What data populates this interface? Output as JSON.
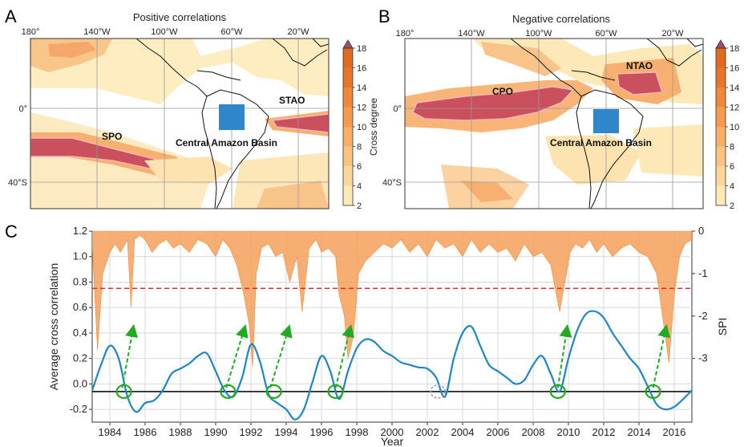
{
  "panels": {
    "a": {
      "letter": "A",
      "title": "Positive correlations",
      "lon_ticks": [
        "180°",
        "140°W",
        "100°W",
        "60°W",
        "20°W"
      ],
      "lat_ticks": [
        "0°",
        "40°S"
      ],
      "regions": {
        "spo": "SPO",
        "stao": "STAO",
        "basin": "Central Amazon Basin"
      }
    },
    "b": {
      "letter": "B",
      "title": "Negative correlations",
      "lon_ticks": [
        "180°",
        "140°W",
        "100°W",
        "60°W",
        "20°W"
      ],
      "lat_ticks": [
        "0°",
        "40°S"
      ],
      "regions": {
        "cpo": "CPO",
        "ntao": "NTAO",
        "basin": "Central Amazon Basin"
      }
    },
    "c": {
      "letter": "C"
    }
  },
  "colorbar": {
    "label": "Cross degree",
    "ticks": [
      "2",
      "4",
      "6",
      "8",
      "10",
      "12",
      "14",
      "16",
      "18"
    ],
    "colors": [
      "#fff7d6",
      "#fde9b4",
      "#fcd798",
      "#fbc37f",
      "#f8ae66",
      "#f59a4e",
      "#f0883c",
      "#e8752a",
      "#e06a1d"
    ],
    "extend_color": "#a05060",
    "threshold_fill": "#cc4f5b",
    "basin_color": "#2f86c8"
  },
  "chart_data": {
    "type": "line",
    "xlabel": "Year",
    "ylabel": "Average cross correlation",
    "y2label": "SPI",
    "xlim": [
      1983,
      2017
    ],
    "ylim": [
      -0.3,
      1.2
    ],
    "y2lim": [
      -4.5,
      0
    ],
    "x_ticks": [
      "1984",
      "1986",
      "1988",
      "1990",
      "1992",
      "1994",
      "1996",
      "1998",
      "2000",
      "2002",
      "2004",
      "2006",
      "2008",
      "2010",
      "2012",
      "2014",
      "2016"
    ],
    "y_ticks": [
      "-0.2",
      "0.0",
      "0.2",
      "0.4",
      "0.6",
      "0.8",
      "1.0",
      "1.2"
    ],
    "y2_ticks": [
      "0",
      "-1",
      "-2",
      "-3"
    ],
    "grid": true,
    "colors": {
      "correlation": "#1f86c6",
      "spi": "#f6a05a",
      "threshold": "#e8241b",
      "baseline": "#111111",
      "marker": "#22aa22",
      "arrow": "#22aa22",
      "dashed_marker": "#999999"
    },
    "threshold": 0.75,
    "baseline": -0.06,
    "correlation": {
      "x": [
        1983.0,
        1983.5,
        1984.0,
        1984.5,
        1985.0,
        1985.5,
        1986.0,
        1986.5,
        1987.0,
        1987.5,
        1988.0,
        1988.5,
        1989.0,
        1989.5,
        1990.0,
        1990.5,
        1991.0,
        1991.5,
        1992.0,
        1992.5,
        1993.0,
        1993.5,
        1994.0,
        1994.5,
        1995.0,
        1995.5,
        1996.0,
        1996.5,
        1997.0,
        1997.5,
        1998.0,
        1998.5,
        1999.0,
        1999.5,
        2000.0,
        2000.5,
        2001.0,
        2001.5,
        2002.0,
        2002.5,
        2003.0,
        2003.5,
        2004.0,
        2004.5,
        2005.0,
        2005.5,
        2006.0,
        2006.5,
        2007.0,
        2007.5,
        2008.0,
        2008.5,
        2009.0,
        2009.5,
        2010.0,
        2010.5,
        2011.0,
        2011.5,
        2012.0,
        2012.5,
        2013.0,
        2013.5,
        2014.0,
        2014.5,
        2015.0,
        2015.5,
        2016.0,
        2016.5,
        2017.0
      ],
      "y": [
        -0.05,
        0.15,
        0.3,
        0.2,
        -0.1,
        -0.22,
        -0.15,
        -0.13,
        -0.05,
        0.08,
        0.12,
        0.16,
        0.22,
        0.24,
        0.1,
        -0.05,
        -0.1,
        0.05,
        0.31,
        0.18,
        -0.08,
        -0.15,
        -0.2,
        -0.28,
        -0.2,
        0.02,
        0.22,
        0.1,
        -0.12,
        0.1,
        0.28,
        0.35,
        0.33,
        0.26,
        0.22,
        0.17,
        0.15,
        0.13,
        0.12,
        0.05,
        -0.1,
        0.2,
        0.4,
        0.45,
        0.3,
        0.15,
        0.1,
        0.05,
        0.0,
        0.03,
        0.15,
        0.22,
        0.08,
        -0.06,
        0.2,
        0.42,
        0.55,
        0.57,
        0.52,
        0.4,
        0.3,
        0.2,
        0.12,
        -0.02,
        -0.16,
        -0.2,
        -0.18,
        -0.12,
        -0.05
      ]
    },
    "spi": {
      "x": [
        1983.0,
        1983.3,
        1983.6,
        1984.0,
        1984.3,
        1984.6,
        1985.0,
        1985.2,
        1985.4,
        1985.7,
        1986.0,
        1986.4,
        1986.8,
        1987.2,
        1987.6,
        1988.0,
        1988.5,
        1989.0,
        1989.5,
        1990.0,
        1990.4,
        1990.8,
        1991.2,
        1991.6,
        1991.9,
        1992.1,
        1992.3,
        1992.6,
        1993.0,
        1993.4,
        1993.8,
        1994.2,
        1994.6,
        1994.9,
        1995.3,
        1995.7,
        1996.0,
        1996.4,
        1996.8,
        1997.0,
        1997.3,
        1997.5,
        1997.8,
        1998.1,
        1998.5,
        1999.0,
        1999.5,
        2000.0,
        2000.5,
        2001.0,
        2001.5,
        2002.0,
        2002.5,
        2003.0,
        2003.5,
        2004.0,
        2004.5,
        2005.0,
        2005.5,
        2006.0,
        2006.5,
        2007.0,
        2007.5,
        2008.0,
        2008.5,
        2009.0,
        2009.5,
        2009.8,
        2010.1,
        2010.4,
        2010.8,
        2011.2,
        2011.6,
        2012.0,
        2012.5,
        2013.0,
        2013.5,
        2014.0,
        2014.5,
        2015.0,
        2015.4,
        2015.7,
        2016.0,
        2016.3,
        2016.6,
        2017.0
      ],
      "y": [
        -0.3,
        -2.8,
        -1.0,
        -0.5,
        -0.3,
        -0.5,
        -0.2,
        -1.8,
        -0.2,
        -0.1,
        -0.2,
        -0.5,
        -0.3,
        -0.2,
        -0.4,
        -0.3,
        -0.5,
        -0.2,
        -0.3,
        -0.6,
        -0.2,
        -0.4,
        -0.8,
        -1.5,
        -2.2,
        -3.2,
        -1.0,
        -0.4,
        -0.3,
        -0.6,
        -0.5,
        -1.2,
        -0.6,
        -1.9,
        -0.4,
        -0.2,
        -0.5,
        -0.4,
        -0.6,
        -1.5,
        -2.0,
        -3.0,
        -2.5,
        -1.0,
        -0.7,
        -0.5,
        -0.3,
        -0.4,
        -0.2,
        -0.5,
        -0.3,
        -0.6,
        -0.2,
        -0.4,
        -0.3,
        -0.6,
        -0.2,
        -0.5,
        -0.3,
        -0.5,
        -0.4,
        -0.7,
        -0.3,
        -0.6,
        -0.5,
        -0.8,
        -1.9,
        -1.2,
        -0.5,
        -0.3,
        -0.4,
        -0.2,
        -0.5,
        -0.3,
        -0.6,
        -0.4,
        -0.3,
        -0.5,
        -0.6,
        -1.0,
        -2.2,
        -3.1,
        -1.5,
        -0.6,
        -0.3,
        -0.2
      ]
    },
    "markers": [
      1984.8,
      1990.7,
      1993.3,
      1996.8,
      2009.4,
      2014.8
    ],
    "dashed_marker": 2002.6,
    "arrows": [
      {
        "from": [
          1984.7,
          -0.03
        ],
        "to": [
          1985.3,
          0.42
        ]
      },
      {
        "from": [
          1990.6,
          -0.03
        ],
        "to": [
          1991.6,
          0.42
        ]
      },
      {
        "from": [
          1993.1,
          -0.03
        ],
        "to": [
          1994.1,
          0.42
        ]
      },
      {
        "from": [
          1996.8,
          -0.03
        ],
        "to": [
          1997.6,
          0.42
        ]
      },
      {
        "from": [
          2009.4,
          -0.03
        ],
        "to": [
          2009.9,
          0.42
        ]
      },
      {
        "from": [
          2014.8,
          -0.03
        ],
        "to": [
          2015.5,
          0.42
        ]
      }
    ]
  }
}
